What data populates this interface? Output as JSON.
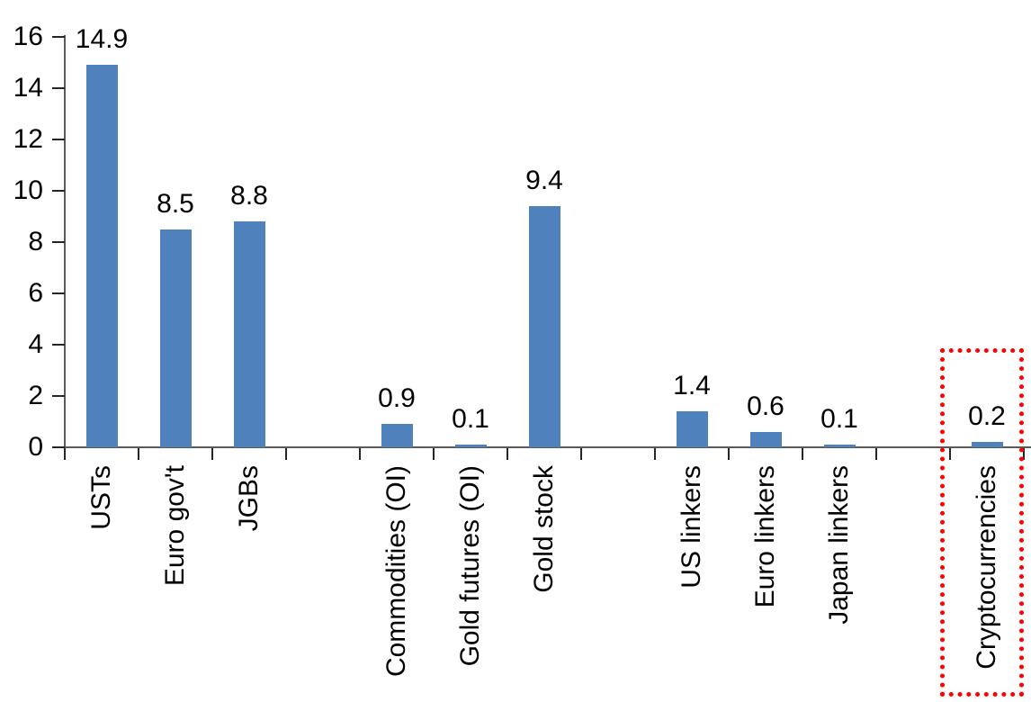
{
  "chart_data": {
    "type": "bar",
    "title": "",
    "xlabel": "",
    "ylabel": "",
    "categories": [
      "USTs",
      "Euro gov't",
      "JGBs",
      "Commodities (OI)",
      "Gold futures (OI)",
      "Gold stock",
      "US linkers",
      "Euro linkers",
      "Japan linkers",
      "Cryptocurrencies"
    ],
    "values": [
      14.9,
      8.5,
      8.8,
      0.9,
      0.1,
      9.4,
      1.4,
      0.6,
      0.1,
      0.2
    ],
    "data_labels": [
      "14.9",
      "8.5",
      "8.8",
      "0.9",
      "0.1",
      "9.4",
      "1.4",
      "0.6",
      "0.1",
      "0.2"
    ],
    "slots": [
      0,
      1,
      2,
      4,
      5,
      6,
      8,
      9,
      10,
      12
    ],
    "total_slots": 13,
    "y_ticks": [
      "0",
      "2",
      "4",
      "6",
      "8",
      "10",
      "12",
      "14",
      "16"
    ],
    "ylim": [
      0,
      16
    ],
    "grid": false,
    "legend": false,
    "bar_color": "#4f81bd",
    "axis_color": "#595959",
    "tick_color": "#262626",
    "label_color": "#000000",
    "category_label_orientation": "vertical-bottom-to-top",
    "highlight": {
      "target": "Cryptocurrencies",
      "shape": "dotted-rectangle",
      "color": "#ff0000"
    }
  }
}
